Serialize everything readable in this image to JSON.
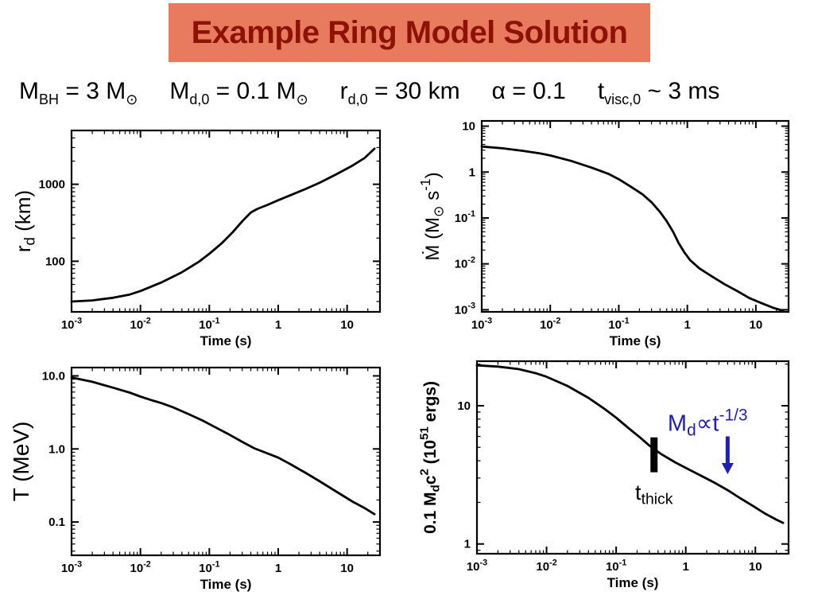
{
  "title": {
    "text": "Example Ring Model Solution",
    "bg": "#e87b5e",
    "color": "#8e1204"
  },
  "params": {
    "items": [
      "M_{BH} = 3 M_{⊙}",
      "M_{d,0} = 0.1 M_{⊙}",
      "r_{d,0} = 30 km",
      "α = 0.1",
      "t_{visc,0} ~ 3 ms"
    ]
  },
  "chart_data": [
    {
      "type": "line",
      "name": "disk-radius-vs-time",
      "xlabel": "Time (s)",
      "ylabel": "r_{d} (km)",
      "xscale": "log",
      "yscale": "log",
      "xlim": [
        0.001,
        30
      ],
      "ylim": [
        22,
        5000
      ],
      "xticks": [
        {
          "v": 0.001,
          "label": "10^{-3}"
        },
        {
          "v": 0.01,
          "label": "10^{-2}"
        },
        {
          "v": 0.1,
          "label": "10^{-1}"
        },
        {
          "v": 1,
          "label": "1"
        },
        {
          "v": 10,
          "label": "10"
        }
      ],
      "yticks": [
        {
          "v": 1000,
          "label": "1000"
        },
        {
          "v": 100,
          "label": "100"
        }
      ],
      "series": [
        {
          "name": "r_d",
          "color": "#000000",
          "points": [
            [
              0.001,
              30
            ],
            [
              0.002,
              31
            ],
            [
              0.004,
              33.5
            ],
            [
              0.007,
              37
            ],
            [
              0.01,
              41
            ],
            [
              0.02,
              53
            ],
            [
              0.04,
              72
            ],
            [
              0.07,
              98
            ],
            [
              0.1,
              125
            ],
            [
              0.15,
              170
            ],
            [
              0.22,
              240
            ],
            [
              0.3,
              330
            ],
            [
              0.4,
              430
            ],
            [
              0.5,
              480
            ],
            [
              0.7,
              540
            ],
            [
              1,
              620
            ],
            [
              1.5,
              720
            ],
            [
              2.5,
              870
            ],
            [
              4,
              1050
            ],
            [
              7,
              1350
            ],
            [
              12,
              1750
            ],
            [
              18,
              2200
            ],
            [
              25,
              2900
            ]
          ]
        }
      ]
    },
    {
      "type": "line",
      "name": "accretion-rate-vs-time",
      "xlabel": "Time (s)",
      "ylabel": "Ṁ (M_{⊙} s^{-1})",
      "xscale": "log",
      "yscale": "log",
      "xlim": [
        0.001,
        30
      ],
      "ylim": [
        0.0009,
        13
      ],
      "xticks": [
        {
          "v": 0.001,
          "label": "10^{-3}"
        },
        {
          "v": 0.01,
          "label": "10^{-2}"
        },
        {
          "v": 0.1,
          "label": "10^{-1}"
        },
        {
          "v": 1,
          "label": "1"
        },
        {
          "v": 10,
          "label": "10"
        }
      ],
      "yticks": [
        {
          "v": 10,
          "label": "10"
        },
        {
          "v": 1,
          "label": "1"
        },
        {
          "v": 0.1,
          "label": "10^{-1}"
        },
        {
          "v": 0.01,
          "label": "10^{-2}"
        },
        {
          "v": 0.001,
          "label": "10^{-3}"
        }
      ],
      "series": [
        {
          "name": "Mdot",
          "color": "#000000",
          "points": [
            [
              0.001,
              3.6
            ],
            [
              0.002,
              3.3
            ],
            [
              0.004,
              2.9
            ],
            [
              0.007,
              2.55
            ],
            [
              0.01,
              2.3
            ],
            [
              0.02,
              1.75
            ],
            [
              0.04,
              1.25
            ],
            [
              0.07,
              0.92
            ],
            [
              0.1,
              0.7
            ],
            [
              0.15,
              0.48
            ],
            [
              0.22,
              0.33
            ],
            [
              0.3,
              0.22
            ],
            [
              0.4,
              0.135
            ],
            [
              0.5,
              0.085
            ],
            [
              0.62,
              0.05
            ],
            [
              0.75,
              0.028
            ],
            [
              0.9,
              0.018
            ],
            [
              1.1,
              0.012
            ],
            [
              1.5,
              0.008
            ],
            [
              2.2,
              0.0055
            ],
            [
              3.5,
              0.0036
            ],
            [
              5.5,
              0.0025
            ],
            [
              8,
              0.0018
            ],
            [
              12,
              0.0014
            ],
            [
              18,
              0.0011
            ],
            [
              25,
              0.00095
            ]
          ]
        }
      ]
    },
    {
      "type": "line",
      "name": "temperature-vs-time",
      "xlabel": "Time (s)",
      "ylabel": "T (MeV)",
      "xscale": "log",
      "yscale": "log",
      "xlim": [
        0.001,
        30
      ],
      "ylim": [
        0.035,
        13
      ],
      "xticks": [
        {
          "v": 0.001,
          "label": "10^{-3}"
        },
        {
          "v": 0.01,
          "label": "10^{-2}"
        },
        {
          "v": 0.1,
          "label": "10^{-1}"
        },
        {
          "v": 1,
          "label": "1"
        },
        {
          "v": 10,
          "label": "10"
        }
      ],
      "yticks": [
        {
          "v": 10,
          "label": "10.0"
        },
        {
          "v": 1,
          "label": "1.0"
        },
        {
          "v": 0.1,
          "label": "0.1"
        }
      ],
      "series": [
        {
          "name": "T",
          "color": "#000000",
          "points": [
            [
              0.001,
              9.5
            ],
            [
              0.002,
              8.3
            ],
            [
              0.004,
              6.9
            ],
            [
              0.007,
              5.9
            ],
            [
              0.01,
              5.2
            ],
            [
              0.015,
              4.6
            ],
            [
              0.02,
              4.25
            ],
            [
              0.03,
              3.7
            ],
            [
              0.05,
              3.0
            ],
            [
              0.08,
              2.45
            ],
            [
              0.12,
              2.0
            ],
            [
              0.2,
              1.55
            ],
            [
              0.3,
              1.25
            ],
            [
              0.45,
              1.02
            ],
            [
              0.7,
              0.87
            ],
            [
              1,
              0.76
            ],
            [
              1.5,
              0.62
            ],
            [
              2.5,
              0.47
            ],
            [
              4,
              0.36
            ],
            [
              7,
              0.26
            ],
            [
              12,
              0.19
            ],
            [
              18,
              0.155
            ],
            [
              25,
              0.128
            ]
          ]
        }
      ]
    },
    {
      "type": "line",
      "name": "disk-energy-vs-time",
      "xlabel": "Time (s)",
      "ylabel": "0.1 M_{d}c^{2} (10^{51} ergs)",
      "xscale": "log",
      "yscale": "log",
      "xlim": [
        0.001,
        30
      ],
      "ylim": [
        0.85,
        21
      ],
      "xticks": [
        {
          "v": 0.001,
          "label": "10^{-3}"
        },
        {
          "v": 0.01,
          "label": "10^{-2}"
        },
        {
          "v": 0.1,
          "label": "10^{-1}"
        },
        {
          "v": 1,
          "label": "1"
        },
        {
          "v": 10,
          "label": "10"
        }
      ],
      "yticks": [
        {
          "v": 10,
          "label": "10"
        },
        {
          "v": 1,
          "label": "1"
        }
      ],
      "series": [
        {
          "name": "0.1 Md c^2",
          "color": "#000000",
          "points": [
            [
              0.001,
              19.6
            ],
            [
              0.002,
              19.2
            ],
            [
              0.004,
              18.4
            ],
            [
              0.007,
              17.2
            ],
            [
              0.01,
              16.2
            ],
            [
              0.02,
              13.9
            ],
            [
              0.04,
              11.4
            ],
            [
              0.07,
              9.4
            ],
            [
              0.1,
              8.2
            ],
            [
              0.15,
              6.9
            ],
            [
              0.22,
              5.9
            ],
            [
              0.3,
              5.15
            ],
            [
              0.45,
              4.45
            ],
            [
              0.7,
              3.9
            ],
            [
              1,
              3.55
            ],
            [
              1.5,
              3.2
            ],
            [
              2.5,
              2.8
            ],
            [
              4,
              2.45
            ],
            [
              6,
              2.15
            ],
            [
              9,
              1.9
            ],
            [
              14,
              1.65
            ],
            [
              20,
              1.5
            ],
            [
              25,
              1.42
            ]
          ]
        }
      ],
      "annotations": [
        {
          "type": "bar",
          "x": 0.35,
          "y1": 3.3,
          "y2": 5.9,
          "color": "#000000",
          "width": 9
        },
        {
          "type": "text",
          "x": 0.35,
          "y": 2.1,
          "text": "t_{thick}",
          "color": "#000000",
          "size": 27,
          "anchor": "middle"
        },
        {
          "type": "arrow",
          "x": 4,
          "y1": 6.0,
          "y2": 3.2,
          "color": "#1f1fb8"
        },
        {
          "type": "text",
          "x": 0.55,
          "y": 6.6,
          "text": "M_{d}∝t^{-1/3}",
          "color": "#1f1fb8",
          "size": 29,
          "anchor": "start"
        }
      ]
    }
  ]
}
